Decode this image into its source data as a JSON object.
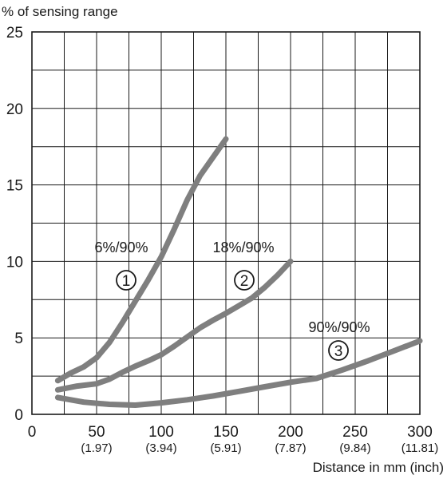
{
  "chart_data": {
    "type": "line",
    "ylabel": "% of sensing range",
    "xlabel": "Distance in mm (inch)",
    "xlim": [
      0,
      300
    ],
    "ylim": [
      0,
      25
    ],
    "grid": true,
    "x_ticks": [
      0,
      50,
      100,
      150,
      200,
      250,
      300
    ],
    "x_tick_labels": [
      "0",
      "50",
      "100",
      "150",
      "200",
      "250",
      "300"
    ],
    "x_tick_sublabels": [
      "",
      "(1.97)",
      "(3.94)",
      "(5.91)",
      "(7.87)",
      "(9.84)",
      "(11.81)"
    ],
    "y_ticks": [
      0,
      5,
      10,
      15,
      20,
      25
    ],
    "y_tick_labels": [
      "0",
      "5",
      "10",
      "15",
      "20",
      "25"
    ],
    "series_color": "#7f7f7f",
    "series": [
      {
        "label": "6%/90%",
        "marker": "①",
        "points": [
          [
            20,
            2.2
          ],
          [
            30,
            2.7
          ],
          [
            40,
            3.1
          ],
          [
            50,
            3.7
          ],
          [
            60,
            4.7
          ],
          [
            70,
            6.0
          ],
          [
            80,
            7.4
          ],
          [
            90,
            8.8
          ],
          [
            100,
            10.3
          ],
          [
            110,
            12.1
          ],
          [
            120,
            14.0
          ],
          [
            130,
            15.6
          ],
          [
            140,
            16.8
          ],
          [
            150,
            18.0
          ]
        ]
      },
      {
        "label": "18%/90%",
        "marker": "②",
        "points": [
          [
            20,
            1.6
          ],
          [
            35,
            1.85
          ],
          [
            50,
            2.0
          ],
          [
            60,
            2.3
          ],
          [
            70,
            2.75
          ],
          [
            80,
            3.15
          ],
          [
            90,
            3.5
          ],
          [
            100,
            3.9
          ],
          [
            110,
            4.45
          ],
          [
            120,
            5.05
          ],
          [
            130,
            5.65
          ],
          [
            140,
            6.15
          ],
          [
            150,
            6.6
          ],
          [
            160,
            7.1
          ],
          [
            170,
            7.6
          ],
          [
            180,
            8.3
          ],
          [
            190,
            9.1
          ],
          [
            200,
            10.0
          ]
        ]
      },
      {
        "label": "90%/90%",
        "marker": "③",
        "points": [
          [
            20,
            1.1
          ],
          [
            40,
            0.8
          ],
          [
            60,
            0.65
          ],
          [
            80,
            0.6
          ],
          [
            100,
            0.75
          ],
          [
            120,
            0.95
          ],
          [
            140,
            1.2
          ],
          [
            160,
            1.5
          ],
          [
            180,
            1.8
          ],
          [
            200,
            2.1
          ],
          [
            220,
            2.35
          ],
          [
            240,
            2.9
          ],
          [
            260,
            3.5
          ],
          [
            280,
            4.15
          ],
          [
            300,
            4.8
          ]
        ]
      }
    ]
  }
}
